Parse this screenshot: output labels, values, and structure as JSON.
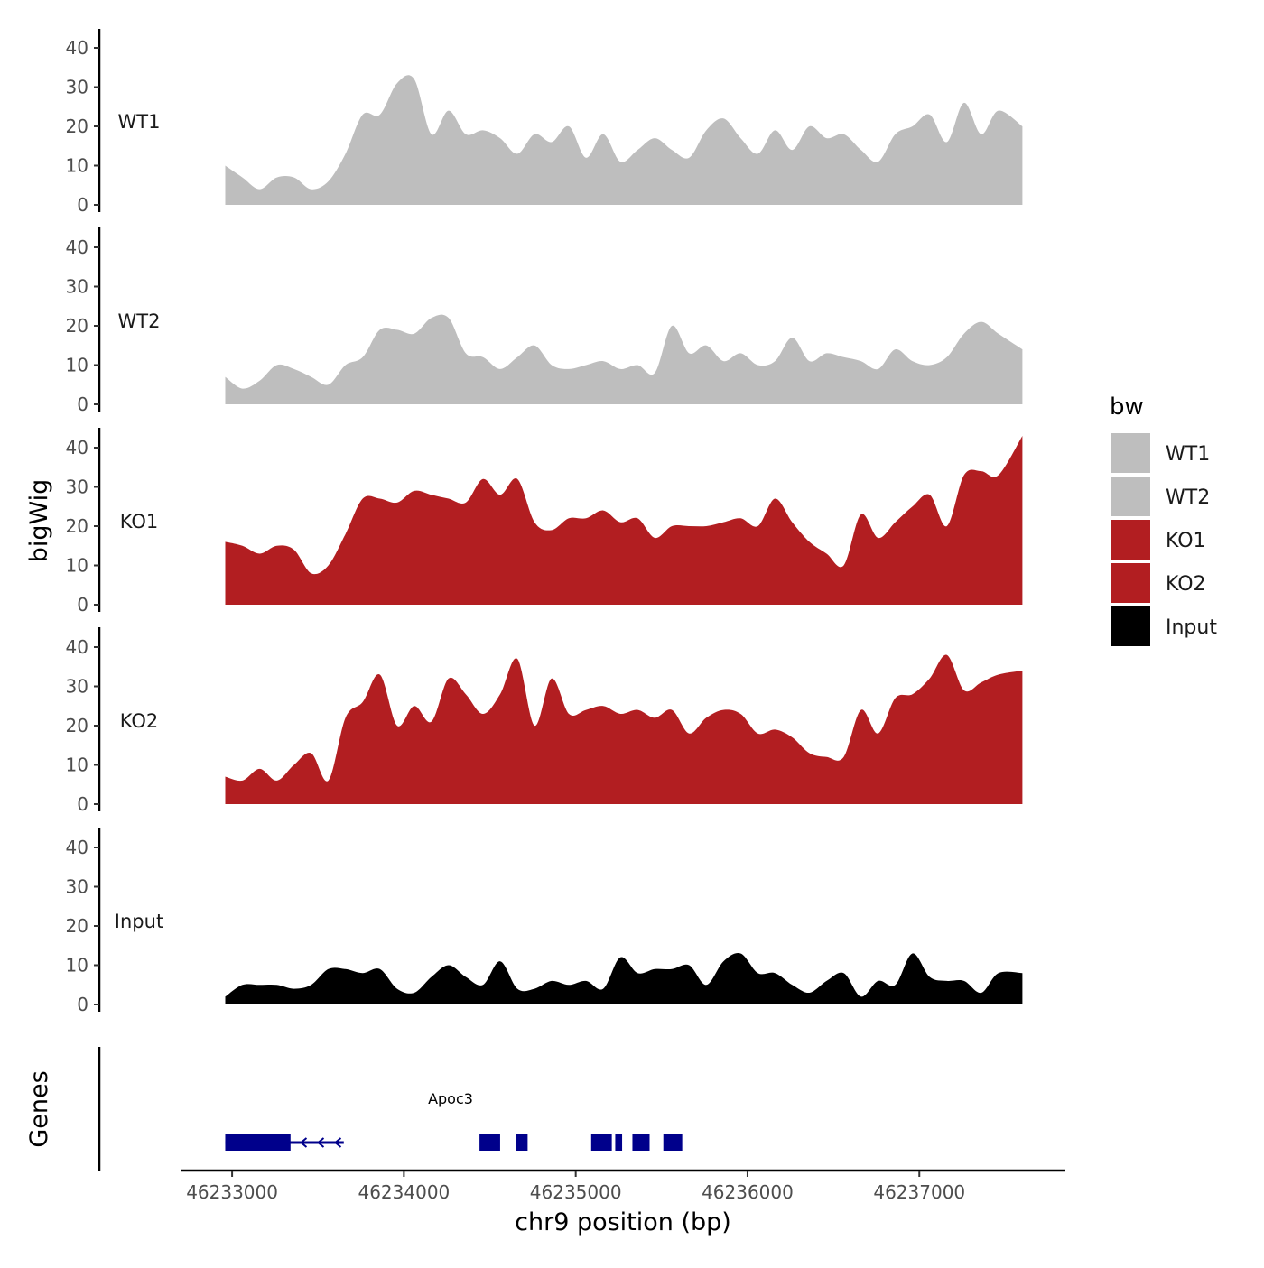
{
  "chart_data": {
    "type": "area",
    "title": "",
    "ylabel": "bigWig",
    "xlabel": "chr9 position (bp)",
    "ylim": [
      0,
      45
    ],
    "yticks": [
      0,
      10,
      20,
      30,
      40
    ],
    "xlim": [
      46232700,
      46237850
    ],
    "xticks": [
      46233000,
      46234000,
      46235000,
      46236000,
      46237000
    ],
    "xtick_labels": [
      "46233000",
      "46234000",
      "46235000",
      "46236000",
      "46237000"
    ],
    "x": [
      46232960,
      46233060,
      46233160,
      46233260,
      46233360,
      46233460,
      46233560,
      46233660,
      46233760,
      46233860,
      46233960,
      46234060,
      46234160,
      46234260,
      46234360,
      46234460,
      46234560,
      46234660,
      46234760,
      46234860,
      46234960,
      46235060,
      46235160,
      46235260,
      46235360,
      46235460,
      46235560,
      46235660,
      46235760,
      46235860,
      46235960,
      46236060,
      46236160,
      46236260,
      46236360,
      46236460,
      46236560,
      46236660,
      46236760,
      46236860,
      46236960,
      46237060,
      46237160,
      46237260,
      46237360,
      46237460,
      46237600
    ],
    "series": [
      {
        "name": "WT1",
        "color": "#bebebe",
        "values": [
          10,
          7,
          4,
          7,
          7,
          4,
          6,
          13,
          23,
          23,
          31,
          32,
          18,
          24,
          18,
          19,
          17,
          13,
          18,
          16,
          20,
          12,
          18,
          11,
          14,
          17,
          14,
          12,
          19,
          22,
          17,
          13,
          19,
          14,
          20,
          17,
          18,
          14,
          11,
          18,
          20,
          23,
          16,
          26,
          18,
          24,
          20
        ]
      },
      {
        "name": "WT2",
        "color": "#bebebe",
        "values": [
          7,
          4,
          6,
          10,
          9,
          7,
          5,
          10,
          12,
          19,
          19,
          18,
          22,
          22,
          13,
          12,
          9,
          12,
          15,
          10,
          9,
          10,
          11,
          9,
          10,
          8,
          20,
          13,
          15,
          11,
          13,
          10,
          11,
          17,
          11,
          13,
          12,
          11,
          9,
          14,
          11,
          10,
          12,
          18,
          21,
          18,
          14
        ]
      },
      {
        "name": "KO1",
        "color": "#b21e21",
        "values": [
          16,
          15,
          13,
          15,
          14,
          8,
          10,
          18,
          27,
          27,
          26,
          29,
          28,
          27,
          26,
          32,
          28,
          32,
          21,
          19,
          22,
          22,
          24,
          21,
          22,
          17,
          20,
          20,
          20,
          21,
          22,
          20,
          27,
          21,
          16,
          13,
          10,
          23,
          17,
          21,
          25,
          28,
          20,
          33,
          34,
          33,
          43
        ]
      },
      {
        "name": "KO2",
        "color": "#b21e21",
        "values": [
          7,
          6,
          9,
          6,
          10,
          13,
          6,
          22,
          26,
          33,
          20,
          25,
          21,
          32,
          28,
          23,
          28,
          37,
          20,
          32,
          23,
          24,
          25,
          23,
          24,
          22,
          24,
          18,
          22,
          24,
          23,
          18,
          19,
          17,
          13,
          12,
          12,
          24,
          18,
          27,
          28,
          32,
          38,
          29,
          31,
          33,
          34
        ]
      },
      {
        "name": "Input",
        "color": "#000000",
        "values": [
          2,
          5,
          5,
          5,
          4,
          5,
          9,
          9,
          8,
          9,
          4,
          3,
          7,
          10,
          7,
          5,
          11,
          4,
          4,
          6,
          5,
          6,
          4,
          12,
          8,
          9,
          9,
          10,
          5,
          11,
          13,
          8,
          8,
          5,
          3,
          6,
          8,
          2,
          6,
          5,
          13,
          7,
          6,
          6,
          3,
          8,
          8
        ]
      }
    ],
    "legend": {
      "title": "bw",
      "position": "right",
      "entries": [
        "WT1",
        "WT2",
        "KO1",
        "KO2",
        "Input"
      ]
    },
    "genes": {
      "ylabel": "Genes",
      "name": "Apoc3",
      "color": "#00008b",
      "start": 46232960,
      "end": 46233650,
      "strand": "-",
      "exons": [
        [
          46232960,
          46233340
        ],
        [
          46234440,
          46234560
        ],
        [
          46234650,
          46234720
        ],
        [
          46235090,
          46235210
        ],
        [
          46235230,
          46235270
        ],
        [
          46235330,
          46235430
        ],
        [
          46235510,
          46235620
        ]
      ]
    }
  }
}
